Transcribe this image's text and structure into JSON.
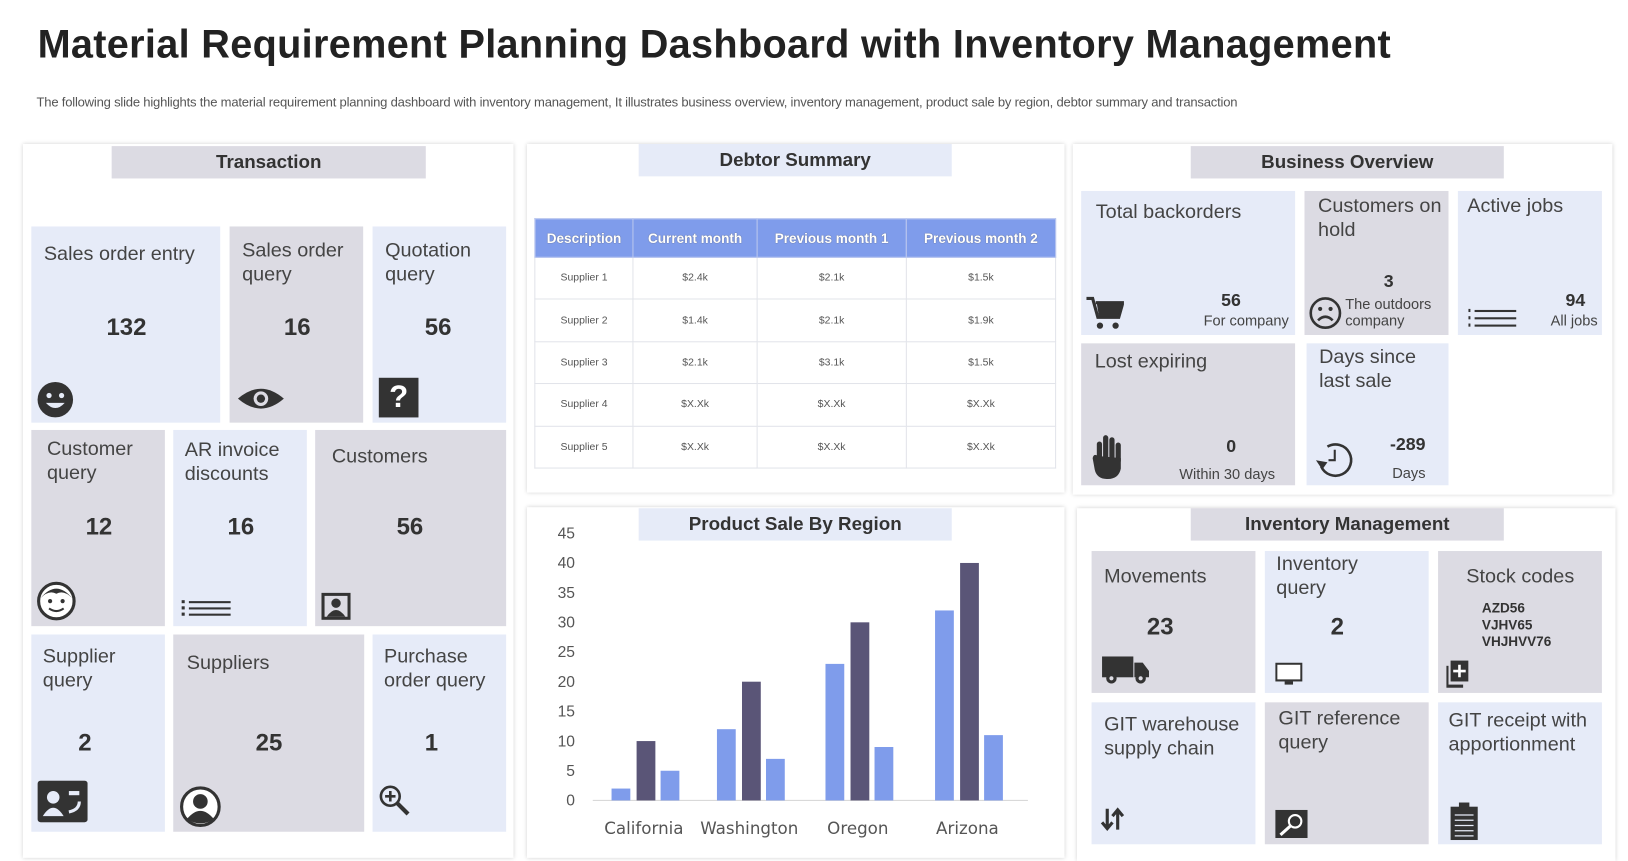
{
  "header": {
    "title": "Material Requirement Planning Dashboard with Inventory Management",
    "subtitle": "The following slide highlights the material requirement planning dashboard with inventory management, It illustrates business overview, inventory management, product sale by region, debtor summary and transaction"
  },
  "transaction": {
    "title": "Transaction",
    "tiles": [
      {
        "label": "Sales order entry",
        "value": "132",
        "icon": "smiley-icon"
      },
      {
        "label": "Sales order query",
        "value": "16",
        "icon": "eye-icon"
      },
      {
        "label": "Quotation query",
        "value": "56",
        "icon": "question-icon"
      },
      {
        "label": "Customer query",
        "value": "12",
        "icon": "face-icon"
      },
      {
        "label": "AR invoice discounts",
        "value": "16",
        "icon": "list-icon"
      },
      {
        "label": "Customers",
        "value": "56",
        "icon": "contact-photo-icon"
      },
      {
        "label": "Supplier query",
        "value": "2",
        "icon": "id-card-icon"
      },
      {
        "label": "Suppliers",
        "value": "25",
        "icon": "user-circle-icon"
      },
      {
        "label": "Purchase order query",
        "value": "1",
        "icon": "zoom-in-icon"
      }
    ]
  },
  "debtor": {
    "title": "Debtor Summary",
    "columns": [
      "Description",
      "Current month",
      "Previous month 1",
      "Previous month 2"
    ],
    "rows": [
      [
        "Supplier 1",
        "$2.4k",
        "$2.1k",
        "$1.5k"
      ],
      [
        "Supplier 2",
        "$1.4k",
        "$2.1k",
        "$1.9k"
      ],
      [
        "Supplier 3",
        "$2.1k",
        "$3.1k",
        "$1.5k"
      ],
      [
        "Supplier 4",
        "$X.Xk",
        "$X.Xk",
        "$X.Xk"
      ],
      [
        "Supplier 5",
        "$X.Xk",
        "$X.Xk",
        "$X.Xk"
      ]
    ]
  },
  "chart_data": {
    "type": "bar",
    "title": "Product Sale By Region",
    "categories": [
      "California",
      "Washington",
      "Oregon",
      "Arizona"
    ],
    "series": [
      {
        "values": [
          2,
          12,
          23,
          32
        ],
        "color": "#7f9ceb"
      },
      {
        "values": [
          10,
          20,
          30,
          40
        ],
        "color": "#5a5577"
      },
      {
        "values": [
          5,
          7,
          9,
          11
        ],
        "color": "#7f9ceb"
      }
    ],
    "yticks": [
      "0",
      "5",
      "10",
      "15",
      "20",
      "25",
      "30",
      "35",
      "40",
      "45"
    ],
    "ylim": [
      0,
      45
    ],
    "xlabel": "",
    "ylabel": "",
    "grid": false
  },
  "business": {
    "title": "Business Overview",
    "tiles": [
      {
        "label": "Total backorders",
        "value": "56",
        "sub": "For company"
      },
      {
        "label": "Customers on hold",
        "value": "3",
        "sub": "The outdoors company"
      },
      {
        "label": "Active jobs",
        "value": "94",
        "sub": "All jobs"
      },
      {
        "label": "Lost expiring",
        "value": "0",
        "sub": "Within 30 days"
      },
      {
        "label": "Days since last sale",
        "value": "-289",
        "sub": "Days"
      }
    ]
  },
  "inventory": {
    "title": "Inventory Management",
    "tiles": [
      {
        "label": "Movements",
        "value": "23"
      },
      {
        "label": "Inventory query",
        "value": "2"
      },
      {
        "label": "Stock codes",
        "codes": [
          "AZD56",
          "VJHV65",
          "VHJHVV76"
        ]
      },
      {
        "label": "GIT warehouse supply chain"
      },
      {
        "label": "GIT reference query"
      },
      {
        "label": "GIT receipt with apportionment"
      }
    ]
  }
}
